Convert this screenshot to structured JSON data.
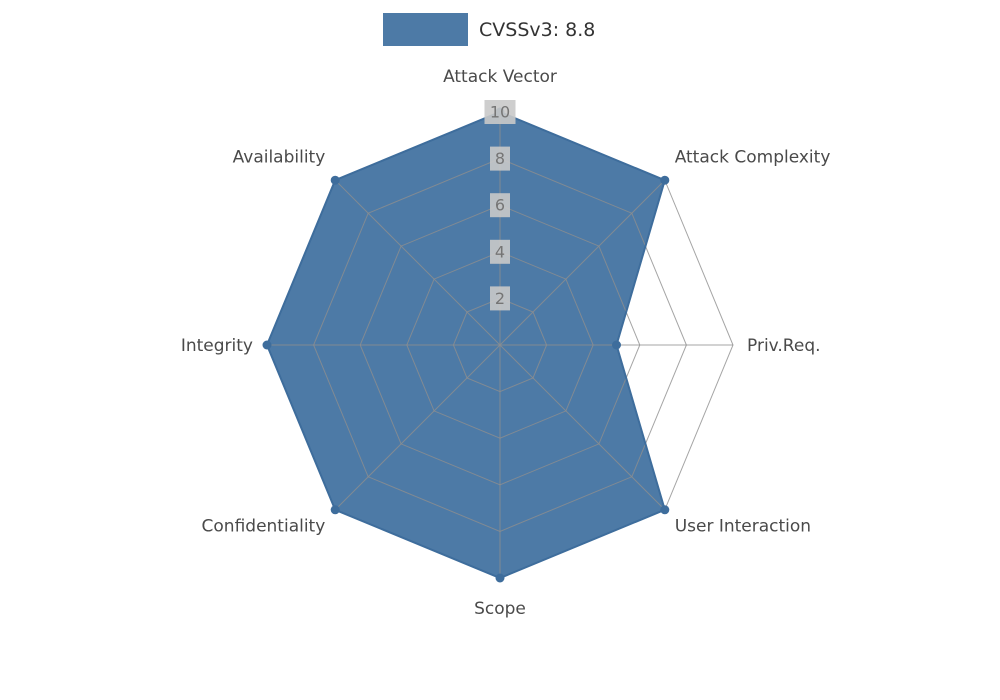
{
  "legend": {
    "label": "CVSSv3: 8.8"
  },
  "chart_data": {
    "type": "radar",
    "title": "CVSSv3: 8.8",
    "categories": [
      "Attack Vector",
      "Attack Complexity",
      "Priv.Req.",
      "User Interaction",
      "Scope",
      "Confidentiality",
      "Integrity",
      "Availability"
    ],
    "series": [
      {
        "name": "CVSSv3: 8.8",
        "values": [
          10,
          10,
          5,
          10,
          10,
          10,
          10,
          10
        ]
      }
    ],
    "ticks": [
      2,
      4,
      6,
      8,
      10
    ],
    "rmax": 10,
    "grid": true,
    "legend_position": "top-center",
    "colors": {
      "fill": "#4d7aa6",
      "stroke": "#3e6d9c",
      "grid": "#8f8f8f",
      "tick_text": "#757575",
      "tick_box": "#c9c9c9",
      "axis_label": "#4a4a4a",
      "legend_text": "#333333"
    }
  }
}
